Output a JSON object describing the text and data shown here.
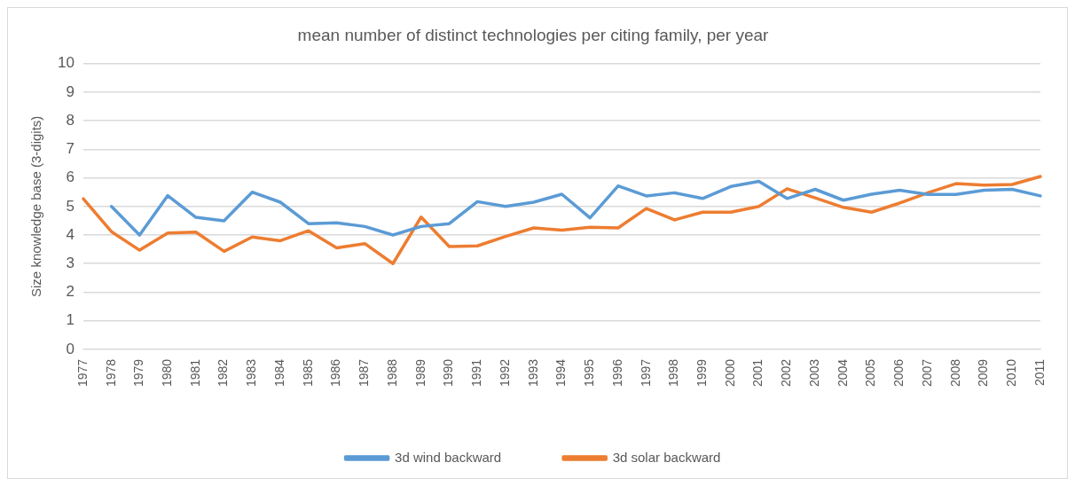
{
  "chart_data": {
    "type": "line",
    "title": "mean number of distinct technologies per citing family, per year",
    "ylabel": "Size knowledge base (3-digits)",
    "categories": [
      "1977",
      "1978",
      "1979",
      "1980",
      "1981",
      "1982",
      "1983",
      "1984",
      "1985",
      "1986",
      "1987",
      "1988",
      "1989",
      "1990",
      "1991",
      "1992",
      "1993",
      "1994",
      "1995",
      "1996",
      "1997",
      "1998",
      "1999",
      "2000",
      "2001",
      "2002",
      "2003",
      "2004",
      "2005",
      "2006",
      "2007",
      "2008",
      "2009",
      "2010",
      "2011"
    ],
    "series": [
      {
        "name": "3d wind backward",
        "color": "#5b9bd5",
        "values": [
          null,
          5.0,
          4.0,
          5.38,
          4.62,
          4.5,
          5.5,
          5.15,
          4.4,
          4.43,
          4.3,
          4.0,
          4.3,
          4.4,
          5.17,
          5.0,
          5.15,
          5.43,
          4.6,
          5.72,
          5.37,
          5.48,
          5.28,
          5.7,
          5.88,
          5.28,
          5.6,
          5.22,
          5.43,
          5.57,
          5.42,
          5.42,
          5.57,
          5.6,
          5.37
        ]
      },
      {
        "name": "3d solar backward",
        "color": "#ed7d31",
        "values": [
          5.27,
          4.12,
          3.47,
          4.07,
          4.1,
          3.43,
          3.93,
          3.8,
          4.15,
          3.55,
          3.7,
          3.0,
          4.63,
          3.6,
          3.62,
          3.95,
          4.25,
          4.17,
          4.27,
          4.25,
          4.93,
          4.53,
          4.8,
          4.8,
          5.0,
          5.62,
          5.3,
          4.97,
          4.8,
          5.12,
          5.48,
          5.8,
          5.75,
          5.77,
          6.05
        ]
      }
    ],
    "ylim": [
      0,
      10
    ],
    "yticks": [
      0,
      1,
      2,
      3,
      4,
      5,
      6,
      7,
      8,
      9,
      10
    ],
    "grid": "y",
    "legend": "bottom",
    "marker": "none",
    "line_style": "solid"
  }
}
